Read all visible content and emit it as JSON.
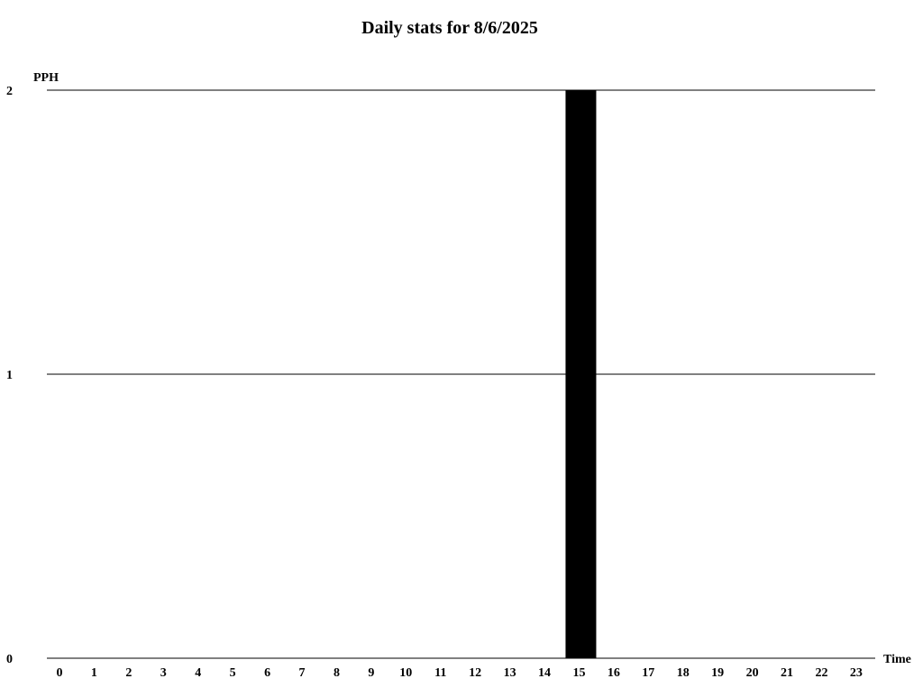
{
  "chart_data": {
    "type": "bar",
    "title": "Daily stats for 8/6/2025",
    "xlabel": "Time",
    "ylabel": "PPH",
    "categories": [
      "0",
      "1",
      "2",
      "3",
      "4",
      "5",
      "6",
      "7",
      "8",
      "9",
      "10",
      "11",
      "12",
      "13",
      "14",
      "15",
      "16",
      "17",
      "18",
      "19",
      "20",
      "21",
      "22",
      "23"
    ],
    "values": [
      0,
      0,
      0,
      0,
      0,
      0,
      0,
      0,
      0,
      0,
      0,
      0,
      0,
      0,
      0,
      2,
      0,
      0,
      0,
      0,
      0,
      0,
      0,
      0
    ],
    "ylim": [
      0,
      2
    ],
    "yticks": [
      "0",
      "1",
      "2"
    ],
    "grid": true,
    "bar_color": "#000000"
  }
}
